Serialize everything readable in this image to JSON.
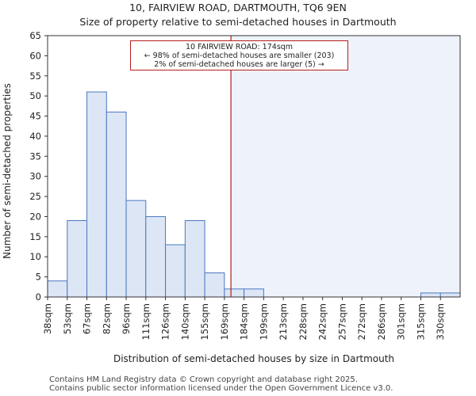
{
  "chart_data": {
    "type": "bar",
    "title": "10, FAIRVIEW ROAD, DARTMOUTH, TQ6 9EN",
    "subtitle": "Size of property relative to semi-detached houses in Dartmouth",
    "xlabel": "Distribution of semi-detached houses by size in Dartmouth",
    "ylabel": "Number of semi-detached properties",
    "categories": [
      "38sqm",
      "53sqm",
      "67sqm",
      "82sqm",
      "96sqm",
      "111sqm",
      "126sqm",
      "140sqm",
      "155sqm",
      "169sqm",
      "184sqm",
      "199sqm",
      "213sqm",
      "228sqm",
      "242sqm",
      "257sqm",
      "272sqm",
      "286sqm",
      "301sqm",
      "315sqm",
      "330sqm"
    ],
    "values": [
      4,
      19,
      51,
      46,
      24,
      20,
      13,
      19,
      6,
      2,
      2,
      0,
      0,
      0,
      0,
      0,
      0,
      0,
      0,
      1,
      1
    ],
    "ylim": [
      0,
      65
    ],
    "yticks": [
      0,
      5,
      10,
      15,
      20,
      25,
      30,
      35,
      40,
      45,
      50,
      55,
      60,
      65
    ],
    "grid": false,
    "marker": {
      "value_sqm": 174,
      "color": "#b81d1d"
    },
    "annotation": {
      "line1": "10 FAIRVIEW ROAD: 174sqm",
      "line2": "← 98% of semi-detached houses are smaller (203)",
      "line3": "2% of semi-detached houses are larger (5) →"
    },
    "colors": {
      "bar_fill": "#dce6f5",
      "bar_stroke": "#4a78c2",
      "shade": "#eef3fb"
    }
  },
  "footer": {
    "line1": "Contains HM Land Registry data © Crown copyright and database right 2025.",
    "line2": "Contains public sector information licensed under the Open Government Licence v3.0."
  }
}
